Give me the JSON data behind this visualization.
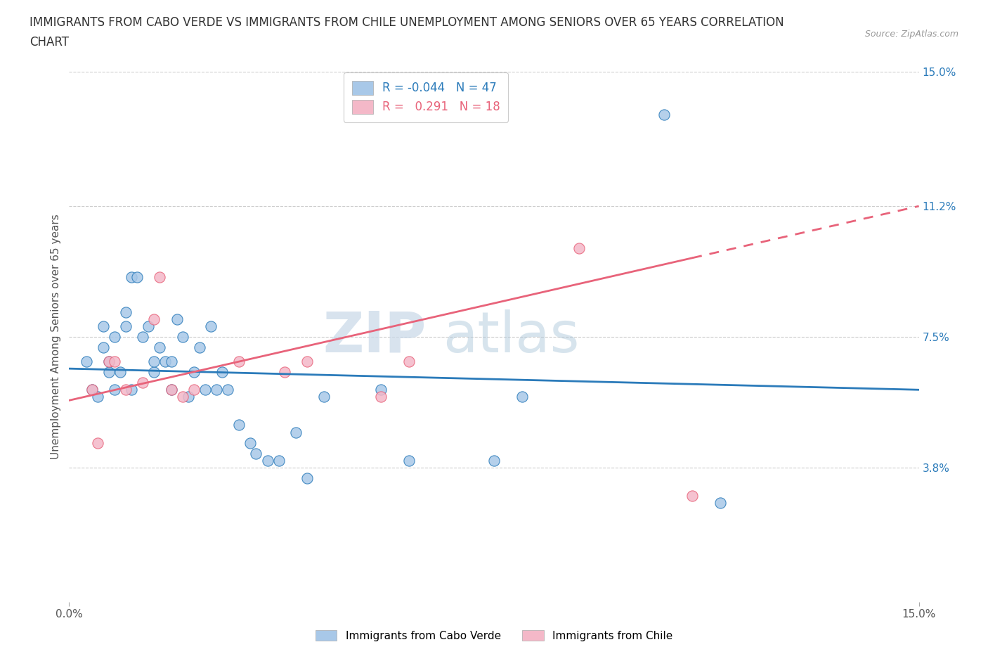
{
  "title": "IMMIGRANTS FROM CABO VERDE VS IMMIGRANTS FROM CHILE UNEMPLOYMENT AMONG SENIORS OVER 65 YEARS CORRELATION\nCHART",
  "source_text": "Source: ZipAtlas.com",
  "ylabel": "Unemployment Among Seniors over 65 years",
  "xlim": [
    0.0,
    0.15
  ],
  "ylim": [
    0.0,
    0.15
  ],
  "xtick_labels": [
    "0.0%",
    "15.0%"
  ],
  "xtick_positions": [
    0.0,
    0.15
  ],
  "ytick_labels": [
    "3.8%",
    "7.5%",
    "11.2%",
    "15.0%"
  ],
  "ytick_positions": [
    0.038,
    0.075,
    0.112,
    0.15
  ],
  "watermark_zip": "ZIP",
  "watermark_atlas": "atlas",
  "cabo_verde_color": "#a8c8e8",
  "chile_color": "#f4b8c8",
  "cabo_verde_line_color": "#2b7bba",
  "chile_line_color": "#e8637a",
  "cabo_verde_R": -0.044,
  "cabo_verde_N": 47,
  "chile_R": 0.291,
  "chile_N": 18,
  "cabo_verde_scatter_x": [
    0.003,
    0.004,
    0.005,
    0.006,
    0.006,
    0.007,
    0.007,
    0.008,
    0.008,
    0.009,
    0.01,
    0.01,
    0.011,
    0.011,
    0.012,
    0.013,
    0.014,
    0.015,
    0.015,
    0.016,
    0.017,
    0.018,
    0.018,
    0.019,
    0.02,
    0.021,
    0.022,
    0.023,
    0.024,
    0.025,
    0.026,
    0.027,
    0.028,
    0.03,
    0.032,
    0.033,
    0.035,
    0.037,
    0.04,
    0.042,
    0.045,
    0.055,
    0.06,
    0.075,
    0.08,
    0.105,
    0.115
  ],
  "cabo_verde_scatter_y": [
    0.068,
    0.06,
    0.058,
    0.072,
    0.078,
    0.065,
    0.068,
    0.06,
    0.075,
    0.065,
    0.078,
    0.082,
    0.06,
    0.092,
    0.092,
    0.075,
    0.078,
    0.065,
    0.068,
    0.072,
    0.068,
    0.06,
    0.068,
    0.08,
    0.075,
    0.058,
    0.065,
    0.072,
    0.06,
    0.078,
    0.06,
    0.065,
    0.06,
    0.05,
    0.045,
    0.042,
    0.04,
    0.04,
    0.048,
    0.035,
    0.058,
    0.06,
    0.04,
    0.04,
    0.058,
    0.138,
    0.028
  ],
  "chile_scatter_x": [
    0.004,
    0.005,
    0.007,
    0.008,
    0.01,
    0.013,
    0.015,
    0.016,
    0.018,
    0.02,
    0.022,
    0.03,
    0.038,
    0.042,
    0.055,
    0.06,
    0.09,
    0.11
  ],
  "chile_scatter_y": [
    0.06,
    0.045,
    0.068,
    0.068,
    0.06,
    0.062,
    0.08,
    0.092,
    0.06,
    0.058,
    0.06,
    0.068,
    0.065,
    0.068,
    0.058,
    0.068,
    0.1,
    0.03
  ],
  "background_color": "#ffffff",
  "grid_color": "#cccccc",
  "title_fontsize": 12,
  "axis_label_fontsize": 11,
  "tick_label_fontsize": 11,
  "legend_fontsize": 12,
  "cabo_verde_line_start_y": 0.066,
  "cabo_verde_line_end_y": 0.06,
  "chile_line_start_y": 0.057,
  "chile_line_end_y": 0.112
}
